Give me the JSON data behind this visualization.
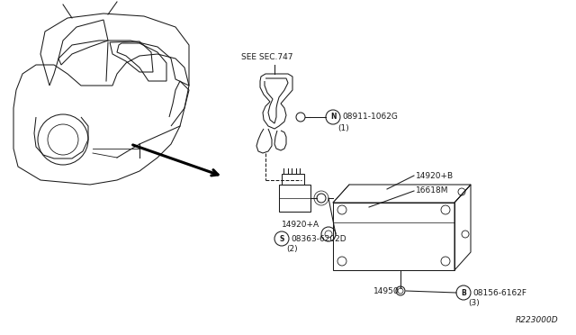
{
  "bg_color": "#ffffff",
  "fig_width": 6.4,
  "fig_height": 3.72,
  "dpi": 100,
  "diagram_id": "R223000D",
  "line_color": "#1a1a1a",
  "lw": 0.75,
  "fs": 6.5,
  "labels": {
    "see_sec": "SEE SEC.747",
    "n_part": "08911-1062G",
    "n_num": "(1)",
    "b_label": "14920+B",
    "m_label": "16618M",
    "a_label": "14920+A",
    "s_part": "08363-6202D",
    "s_num": "(2)",
    "bottom_label": "14950",
    "b_part": "08156-6162F",
    "b_num": "(3)"
  }
}
